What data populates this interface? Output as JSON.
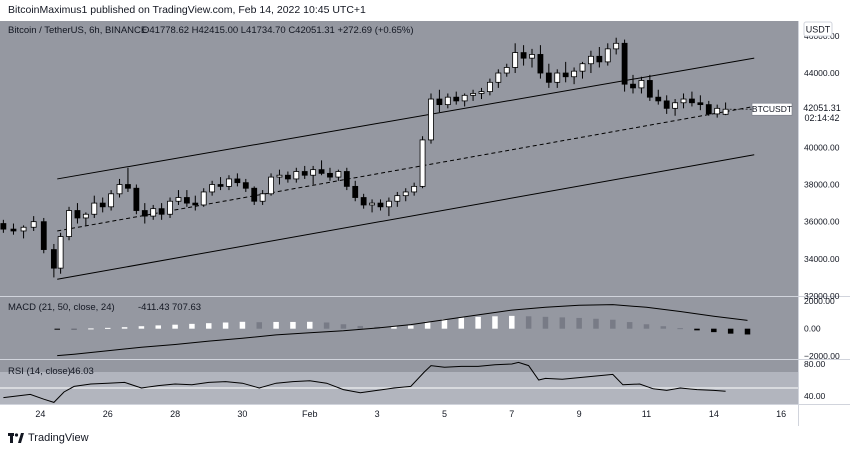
{
  "publisher": {
    "text": "BitcoinMaximus1 published on TradingView.com, Feb 14, 2022 10:45 UTC+1"
  },
  "footer": {
    "brand": "TradingView"
  },
  "colors": {
    "panel_bg": "#9598a1",
    "rsi_band": "#b2b5be",
    "candle_up": "#ffffff",
    "candle_down": "#000000",
    "line": "#000000",
    "axis_text": "#131722"
  },
  "chart_data": {
    "type": "candlestick",
    "title": "Bitcoin / TetherUS, 6h, BINANCE",
    "ohlc_text": "O41778.62 H42415.00 L41734.70 C42051.31 +272.69 (+0.65%)",
    "currency": "USDT",
    "price_axis": {
      "range": [
        32000,
        46800
      ],
      "ticks": [
        {
          "value": 46000,
          "label": "46000.00"
        },
        {
          "value": 44000,
          "label": "44000.00"
        },
        {
          "value": 42000,
          "label": "42000.00"
        },
        {
          "value": 40000,
          "label": "40000.00"
        },
        {
          "value": 38000,
          "label": "38000.00"
        },
        {
          "value": 36000,
          "label": "36000.00"
        },
        {
          "value": 34000,
          "label": "34000.00"
        },
        {
          "value": 32000,
          "label": "32000.00"
        }
      ]
    },
    "time_axis": {
      "range": [
        22.8,
        46.5
      ],
      "ticks": [
        {
          "t": 24,
          "label": "24"
        },
        {
          "t": 26,
          "label": "26"
        },
        {
          "t": 28,
          "label": "28"
        },
        {
          "t": 30,
          "label": "30"
        },
        {
          "t": 32,
          "label": "Feb"
        },
        {
          "t": 34,
          "label": "3"
        },
        {
          "t": 36,
          "label": "5"
        },
        {
          "t": 38,
          "label": "7"
        },
        {
          "t": 40,
          "label": "9"
        },
        {
          "t": 42,
          "label": "11"
        },
        {
          "t": 44,
          "label": "14"
        },
        {
          "t": 46,
          "label": "16"
        }
      ]
    },
    "last_price": {
      "symbol": "BTCUSDT",
      "value": 42051.31,
      "label": "42051.31",
      "countdown": "02:14:42"
    },
    "channel": {
      "upper": [
        {
          "t": 24.5,
          "p": 38300
        },
        {
          "t": 45.2,
          "p": 44800
        }
      ],
      "middle": [
        {
          "t": 24.5,
          "p": 35500
        },
        {
          "t": 45.2,
          "p": 42200
        }
      ],
      "lower": [
        {
          "t": 24.5,
          "p": 32900
        },
        {
          "t": 45.2,
          "p": 39600
        }
      ]
    },
    "candles": [
      [
        22.9,
        35900,
        36100,
        35400,
        35600
      ],
      [
        23.2,
        35600,
        35900,
        35300,
        35500
      ],
      [
        23.5,
        35500,
        35800,
        35100,
        35700
      ],
      [
        23.8,
        35700,
        36300,
        35500,
        36000
      ],
      [
        24.1,
        36000,
        36200,
        34300,
        34500
      ],
      [
        24.4,
        34500,
        34800,
        33000,
        33500
      ],
      [
        24.6,
        33500,
        35400,
        33200,
        35200
      ],
      [
        24.85,
        35200,
        36800,
        35000,
        36600
      ],
      [
        25.1,
        36600,
        37000,
        35900,
        36200
      ],
      [
        25.35,
        36200,
        36500,
        35800,
        36400
      ],
      [
        25.6,
        36400,
        37400,
        36200,
        37000
      ],
      [
        25.85,
        37000,
        37300,
        36500,
        36800
      ],
      [
        26.1,
        36800,
        37700,
        36600,
        37500
      ],
      [
        26.35,
        37500,
        38300,
        37300,
        38000
      ],
      [
        26.6,
        38000,
        38900,
        37600,
        37800
      ],
      [
        26.85,
        37800,
        38000,
        36400,
        36600
      ],
      [
        27.1,
        36600,
        37000,
        35900,
        36300
      ],
      [
        27.35,
        36300,
        36900,
        36100,
        36700
      ],
      [
        27.6,
        36700,
        37000,
        36100,
        36400
      ],
      [
        27.85,
        36400,
        37300,
        36200,
        37100
      ],
      [
        28.1,
        37100,
        37700,
        36900,
        37300
      ],
      [
        28.35,
        37300,
        37700,
        36800,
        37000
      ],
      [
        28.6,
        37000,
        37400,
        36600,
        36900
      ],
      [
        28.85,
        36900,
        37800,
        36800,
        37600
      ],
      [
        29.1,
        37600,
        38200,
        37400,
        38000
      ],
      [
        29.35,
        38000,
        38400,
        37700,
        37900
      ],
      [
        29.6,
        37900,
        38500,
        37700,
        38300
      ],
      [
        29.85,
        38300,
        38600,
        37900,
        38100
      ],
      [
        30.1,
        38100,
        38300,
        37600,
        37800
      ],
      [
        30.35,
        37800,
        37900,
        36900,
        37100
      ],
      [
        30.6,
        37100,
        37700,
        36900,
        37500
      ],
      [
        30.85,
        37500,
        38600,
        37400,
        38400
      ],
      [
        31.1,
        38400,
        38800,
        38000,
        38500
      ],
      [
        31.35,
        38500,
        38700,
        38100,
        38300
      ],
      [
        31.6,
        38300,
        38900,
        38100,
        38700
      ],
      [
        31.85,
        38700,
        39000,
        38300,
        38500
      ],
      [
        32.1,
        38500,
        39000,
        38000,
        38800
      ],
      [
        32.35,
        38800,
        39300,
        38500,
        38600
      ],
      [
        32.6,
        38600,
        38900,
        38200,
        38400
      ],
      [
        32.85,
        38400,
        38800,
        38200,
        38700
      ],
      [
        33.1,
        38700,
        38900,
        37700,
        37900
      ],
      [
        33.35,
        37900,
        38200,
        37100,
        37300
      ],
      [
        33.6,
        37300,
        37500,
        36700,
        36900
      ],
      [
        33.85,
        36900,
        37200,
        36500,
        37000
      ],
      [
        34.1,
        37000,
        37200,
        36600,
        36800
      ],
      [
        34.35,
        36800,
        37300,
        36300,
        37100
      ],
      [
        34.6,
        37100,
        37600,
        36800,
        37400
      ],
      [
        34.85,
        37400,
        37800,
        37100,
        37600
      ],
      [
        35.1,
        37600,
        38100,
        37400,
        37900
      ],
      [
        35.35,
        37900,
        40600,
        37800,
        40400
      ],
      [
        35.6,
        40400,
        42900,
        40200,
        42600
      ],
      [
        35.85,
        42600,
        43100,
        41900,
        42300
      ],
      [
        36.1,
        42300,
        42900,
        42100,
        42700
      ],
      [
        36.35,
        42700,
        43000,
        42300,
        42500
      ],
      [
        36.6,
        42500,
        42900,
        42200,
        42800
      ],
      [
        36.85,
        42800,
        43100,
        42500,
        42900
      ],
      [
        37.1,
        42900,
        43200,
        42600,
        43000
      ],
      [
        37.35,
        43000,
        43700,
        42800,
        43500
      ],
      [
        37.6,
        43500,
        44200,
        43200,
        44000
      ],
      [
        37.85,
        44000,
        44500,
        43800,
        44300
      ],
      [
        38.1,
        44300,
        45600,
        44000,
        45100
      ],
      [
        38.35,
        45100,
        45500,
        44400,
        44800
      ],
      [
        38.6,
        44800,
        45300,
        44300,
        45000
      ],
      [
        38.85,
        45000,
        45500,
        43700,
        44000
      ],
      [
        39.1,
        44000,
        44500,
        43200,
        43500
      ],
      [
        39.35,
        43500,
        44200,
        43200,
        44000
      ],
      [
        39.6,
        44000,
        44600,
        43500,
        43800
      ],
      [
        39.85,
        43800,
        44300,
        43400,
        44100
      ],
      [
        40.1,
        44100,
        44600,
        43700,
        44500
      ],
      [
        40.35,
        44500,
        45200,
        44000,
        44900
      ],
      [
        40.6,
        44900,
        45400,
        44300,
        44600
      ],
      [
        40.85,
        44600,
        45600,
        44400,
        45300
      ],
      [
        41.1,
        45300,
        45900,
        45000,
        45600
      ],
      [
        41.35,
        45600,
        45800,
        43000,
        43400
      ],
      [
        41.6,
        43400,
        43900,
        42900,
        43200
      ],
      [
        41.85,
        43200,
        43800,
        42900,
        43600
      ],
      [
        42.1,
        43600,
        43900,
        42500,
        42700
      ],
      [
        42.35,
        42700,
        43100,
        42300,
        42500
      ],
      [
        42.6,
        42500,
        42800,
        41800,
        42100
      ],
      [
        42.85,
        42100,
        42600,
        41700,
        42400
      ],
      [
        43.1,
        42400,
        42900,
        42100,
        42600
      ],
      [
        43.35,
        42600,
        43000,
        42200,
        42400
      ],
      [
        43.6,
        42400,
        42800,
        42000,
        42300
      ],
      [
        43.85,
        42300,
        42500,
        41700,
        41800
      ],
      [
        44.1,
        41800,
        42300,
        41600,
        42100
      ],
      [
        44.35,
        41778.62,
        42415,
        41734.7,
        42051.31
      ]
    ],
    "macd": {
      "label": "MACD (21, 50, close, 24)",
      "macd_value": "-411.43",
      "signal_value": "707.63",
      "range": [
        -2200,
        2300
      ],
      "ticks": [
        {
          "value": 2000,
          "label": "2000.00"
        },
        {
          "value": 0,
          "label": "0.00"
        },
        {
          "value": -2000,
          "label": "−2000.00"
        }
      ],
      "line": [
        [
          24.5,
          -1950
        ],
        [
          25,
          -1850
        ],
        [
          26,
          -1600
        ],
        [
          27,
          -1350
        ],
        [
          28,
          -1150
        ],
        [
          29,
          -900
        ],
        [
          30,
          -700
        ],
        [
          31,
          -450
        ],
        [
          32,
          -300
        ],
        [
          33,
          -150
        ],
        [
          34,
          50
        ],
        [
          35,
          300
        ],
        [
          36,
          650
        ],
        [
          37,
          1000
        ],
        [
          38,
          1350
        ],
        [
          39,
          1550
        ],
        [
          40,
          1700
        ],
        [
          41,
          1750
        ],
        [
          42,
          1550
        ],
        [
          43,
          1250
        ],
        [
          44,
          900
        ],
        [
          45,
          600
        ]
      ],
      "histogram": [
        [
          24.5,
          -50
        ],
        [
          25,
          -30
        ],
        [
          25.5,
          20
        ],
        [
          26,
          60
        ],
        [
          26.5,
          110
        ],
        [
          27,
          180
        ],
        [
          27.5,
          240
        ],
        [
          28,
          290
        ],
        [
          28.5,
          350
        ],
        [
          29,
          400
        ],
        [
          29.5,
          450
        ],
        [
          30,
          500
        ],
        [
          30.5,
          470
        ],
        [
          31,
          490
        ],
        [
          31.5,
          490
        ],
        [
          32,
          500
        ],
        [
          32.5,
          450
        ],
        [
          33,
          320
        ],
        [
          33.5,
          200
        ],
        [
          34,
          140
        ],
        [
          34.5,
          170
        ],
        [
          35,
          230
        ],
        [
          35.5,
          500
        ],
        [
          36,
          700
        ],
        [
          36.5,
          800
        ],
        [
          37,
          860
        ],
        [
          37.5,
          900
        ],
        [
          38,
          930
        ],
        [
          38.5,
          900
        ],
        [
          39,
          860
        ],
        [
          39.5,
          820
        ],
        [
          40,
          780
        ],
        [
          40.5,
          720
        ],
        [
          41,
          650
        ],
        [
          41.5,
          480
        ],
        [
          42,
          320
        ],
        [
          42.5,
          180
        ],
        [
          43,
          40
        ],
        [
          43.5,
          -120
        ],
        [
          44,
          -250
        ],
        [
          44.5,
          -360
        ],
        [
          45,
          -420
        ]
      ]
    },
    "rsi": {
      "label": "RSI (14, close)",
      "value_label": "46.03",
      "range": [
        30,
        85
      ],
      "ticks": [
        {
          "value": 80,
          "label": "80.00"
        },
        {
          "value": 40,
          "label": "40.00"
        }
      ],
      "band": [
        30,
        70
      ],
      "reference": 50,
      "series": [
        [
          22.9,
          38
        ],
        [
          23.3,
          40
        ],
        [
          23.7,
          42
        ],
        [
          24.1,
          36
        ],
        [
          24.4,
          32
        ],
        [
          24.7,
          45
        ],
        [
          25,
          52
        ],
        [
          25.5,
          55
        ],
        [
          26,
          56
        ],
        [
          26.5,
          57
        ],
        [
          27,
          50
        ],
        [
          27.5,
          53
        ],
        [
          28,
          55
        ],
        [
          28.5,
          54
        ],
        [
          29,
          57
        ],
        [
          29.5,
          58
        ],
        [
          30,
          56
        ],
        [
          30.5,
          50
        ],
        [
          31,
          56
        ],
        [
          31.5,
          58
        ],
        [
          32,
          59
        ],
        [
          32.5,
          56
        ],
        [
          33,
          48
        ],
        [
          33.5,
          44
        ],
        [
          34,
          47
        ],
        [
          34.5,
          50
        ],
        [
          35,
          52
        ],
        [
          35.4,
          70
        ],
        [
          35.6,
          78
        ],
        [
          36,
          76
        ],
        [
          36.5,
          77
        ],
        [
          37,
          77
        ],
        [
          37.5,
          79
        ],
        [
          38,
          80
        ],
        [
          38.2,
          82
        ],
        [
          38.5,
          78
        ],
        [
          38.8,
          60
        ],
        [
          39,
          62
        ],
        [
          39.5,
          61
        ],
        [
          40,
          63
        ],
        [
          40.5,
          65
        ],
        [
          41,
          67
        ],
        [
          41.3,
          54
        ],
        [
          41.8,
          55
        ],
        [
          42.2,
          49
        ],
        [
          42.6,
          47
        ],
        [
          43,
          50
        ],
        [
          43.5,
          48
        ],
        [
          44,
          47
        ],
        [
          44.35,
          46.03
        ]
      ]
    }
  }
}
